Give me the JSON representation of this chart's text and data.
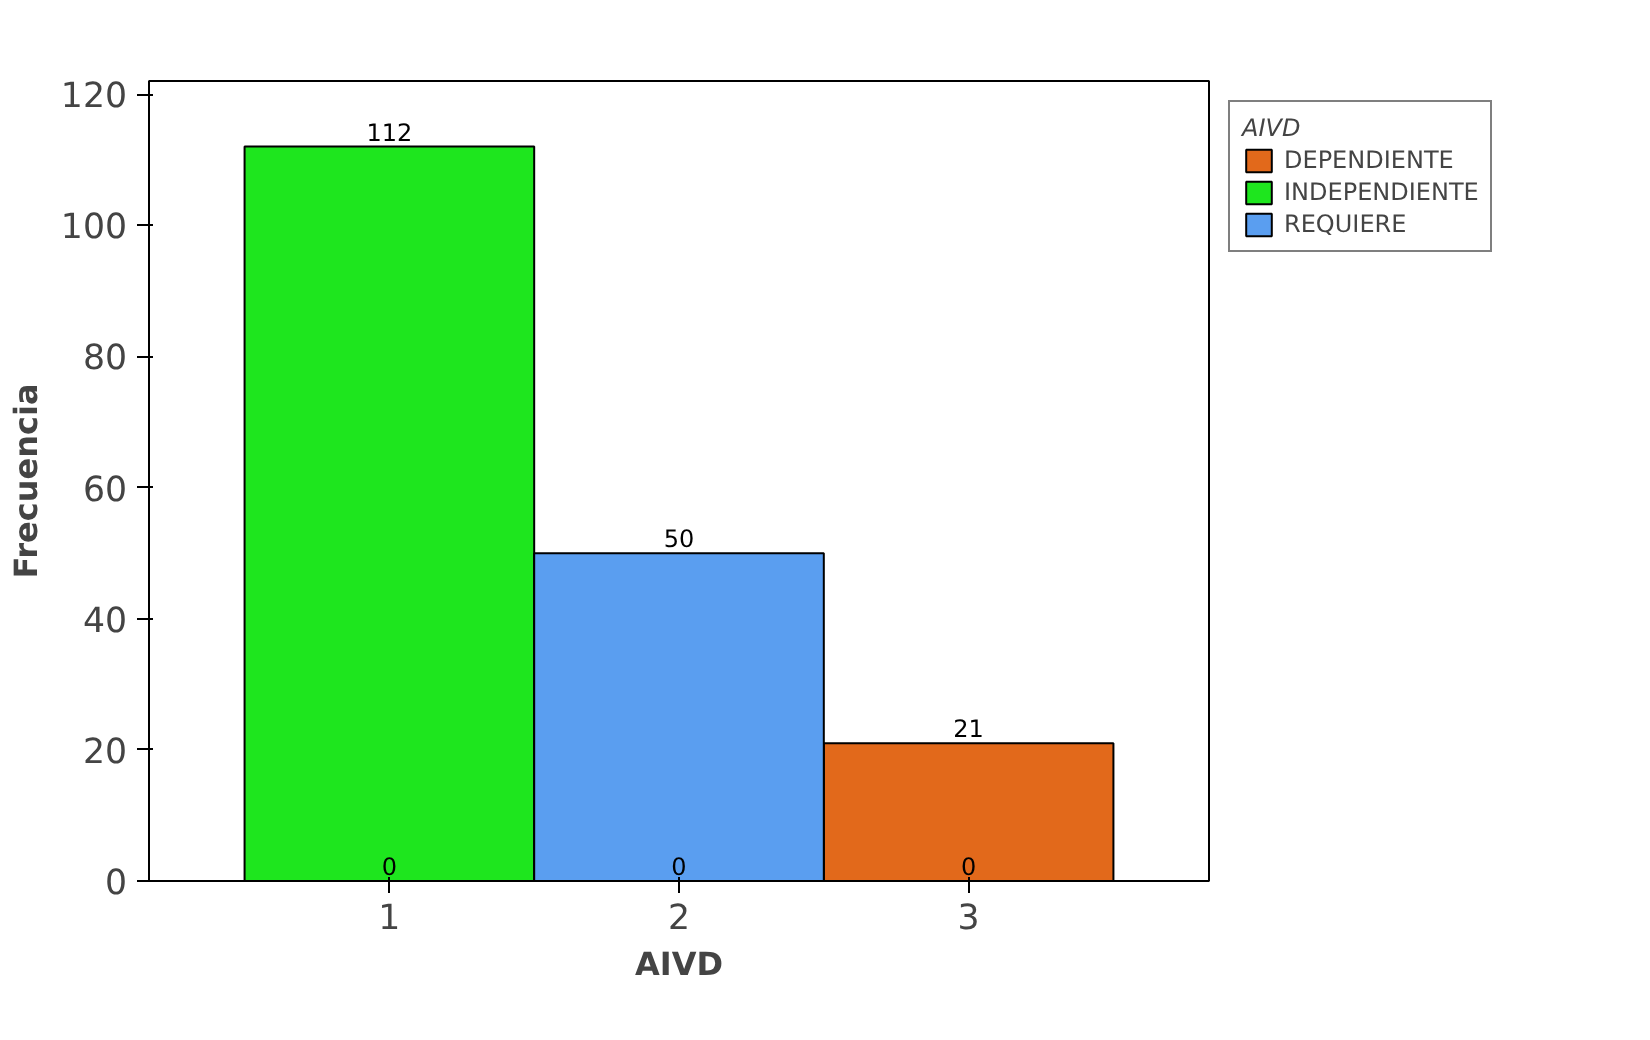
{
  "chart_data": {
    "type": "bar",
    "xlabel": "AIVD",
    "ylabel": "Frecuencia",
    "legend_title": "AIVD",
    "legend": "right",
    "grid": false,
    "categories": [
      "1",
      "2",
      "3"
    ],
    "ylim": [
      0,
      122
    ],
    "yticks": [
      0,
      20,
      40,
      60,
      80,
      100,
      120
    ],
    "series": [
      {
        "name": "DEPENDIENTE",
        "color": "#e2691b",
        "values": [
          0,
          0,
          21
        ],
        "value_labels": [
          null,
          null,
          "21"
        ]
      },
      {
        "name": "INDEPENDIENTE",
        "color": "#1ee61e",
        "values": [
          112,
          0,
          0
        ],
        "value_labels": [
          "112",
          null,
          null
        ]
      },
      {
        "name": "REQUIERE",
        "color": "#5a9ef0",
        "values": [
          0,
          50,
          0
        ],
        "value_labels": [
          null,
          "50",
          null
        ]
      }
    ],
    "annotations": [
      {
        "text": "0",
        "x": "1",
        "y": 0
      },
      {
        "text": "0",
        "x": "2",
        "y": 0
      },
      {
        "text": "0",
        "x": "3",
        "y": 0
      }
    ]
  }
}
